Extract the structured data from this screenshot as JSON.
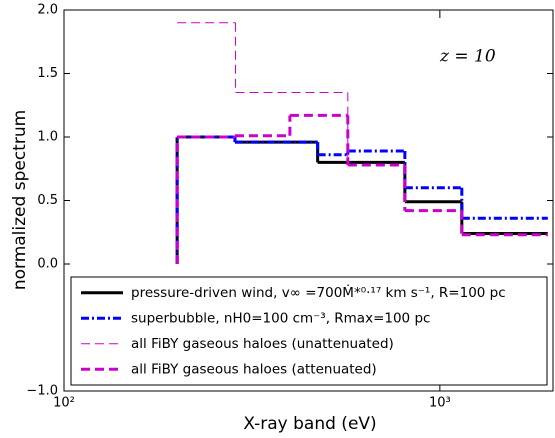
{
  "chart_data": {
    "type": "step",
    "annotation": "z = 10",
    "x_label": "X-ray band (eV)",
    "y_label": "normalized spectrum",
    "xscale": "log",
    "xlim": [
      100,
      2000
    ],
    "ylim": [
      -1.0,
      2.0
    ],
    "xticks": [
      {
        "value": 100,
        "label": "10²"
      },
      {
        "value": 1000,
        "label": "10³"
      }
    ],
    "yticks": [
      {
        "value": 2.0,
        "label": "2.0"
      },
      {
        "value": 1.5,
        "label": "1.5"
      },
      {
        "value": 1.0,
        "label": "1.0"
      },
      {
        "value": 0.5,
        "label": "0.5"
      },
      {
        "value": 0.0,
        "label": "0.0"
      },
      {
        "value": -1.0,
        "label": "−1.0"
      }
    ],
    "legend": "lower right",
    "series": [
      {
        "name": "pressure-driven wind, v∞ =700Ṁ*⁰·¹⁷ km s⁻¹, R=100 pc",
        "color": "#000000",
        "style": "solid",
        "width": 3,
        "from_zero": true,
        "bins": [
          200,
          285,
          473,
          807,
          1144,
          1937
        ],
        "values": [
          1.0,
          0.96,
          0.8,
          0.49,
          0.24
        ]
      },
      {
        "name": "superbubble, nH0=100 cm⁻³, Rmax=100 pc",
        "color": "#0000ff",
        "style": "dashdot",
        "width": 3,
        "from_zero": true,
        "bins": [
          200,
          285,
          473,
          569,
          807,
          1144,
          1937
        ],
        "values": [
          1.0,
          0.96,
          0.86,
          0.89,
          0.6,
          0.36
        ]
      },
      {
        "name": "all FiBY gaseous haloes (unattenuated)",
        "color": "#cc00cc",
        "style": "dashed",
        "width": 1,
        "from_zero": false,
        "bins": [
          200,
          286,
          569,
          807,
          1144,
          1937
        ],
        "values": [
          1.9,
          1.35,
          0.78,
          0.42,
          0.23
        ]
      },
      {
        "name": "all FiBY gaseous haloes (attenuated)",
        "color": "#cc00cc",
        "style": "dashed",
        "width": 3,
        "from_zero": true,
        "bins": [
          200,
          285,
          399,
          569,
          807,
          1144,
          1937
        ],
        "values": [
          1.0,
          1.01,
          1.17,
          0.78,
          0.42,
          0.23
        ]
      }
    ]
  }
}
